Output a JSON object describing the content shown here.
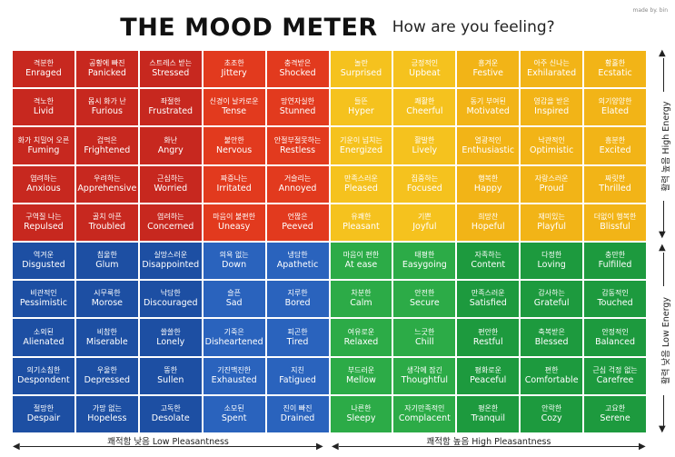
{
  "header": {
    "title": "THE MOOD METER",
    "subtitle": "How are you feeling?",
    "credit": "made by. bin"
  },
  "axes": {
    "low_pleasantness": "쾌적함 낮음  Low Pleasantness",
    "high_pleasantness": "쾌적함 높음  High Pleasantness",
    "high_energy": "활력 높음 High Energy",
    "low_energy": "활력 낮음  Low Energy"
  },
  "colors": {
    "red": "#c7281f",
    "red_light": "#e23a1e",
    "yellow": "#f2b417",
    "yellow_light": "#f5c21e",
    "blue": "#1d4fa3",
    "blue_light": "#2a63bd",
    "green": "#1d9a3e",
    "green_light": "#2cab47"
  },
  "grid": [
    [
      {
        "ko": "격분한",
        "en": "Enraged"
      },
      {
        "ko": "공황에 빠진",
        "en": "Panicked"
      },
      {
        "ko": "스트레스 받는",
        "en": "Stressed"
      },
      {
        "ko": "초조한",
        "en": "Jittery"
      },
      {
        "ko": "충격받은",
        "en": "Shocked"
      },
      {
        "ko": "놀란",
        "en": "Surprised"
      },
      {
        "ko": "긍정적인",
        "en": "Upbeat"
      },
      {
        "ko": "흥겨운",
        "en": "Festive"
      },
      {
        "ko": "아주 신나는",
        "en": "Exhilarated"
      },
      {
        "ko": "황홀한",
        "en": "Ecstatic"
      }
    ],
    [
      {
        "ko": "격노한",
        "en": "Livid"
      },
      {
        "ko": "몹시 화가 난",
        "en": "Furious"
      },
      {
        "ko": "좌절한",
        "en": "Frustrated"
      },
      {
        "ko": "신경이 날카로운",
        "en": "Tense"
      },
      {
        "ko": "망연자실한",
        "en": "Stunned"
      },
      {
        "ko": "들뜬",
        "en": "Hyper"
      },
      {
        "ko": "쾌활한",
        "en": "Cheerful"
      },
      {
        "ko": "동기 부여된",
        "en": "Motivated"
      },
      {
        "ko": "영감을 받은",
        "en": "Inspired"
      },
      {
        "ko": "의기양양한",
        "en": "Elated"
      }
    ],
    [
      {
        "ko": "화가 치밀어 오른",
        "en": "Fuming"
      },
      {
        "ko": "겁먹은",
        "en": "Frightened"
      },
      {
        "ko": "화난",
        "en": "Angry"
      },
      {
        "ko": "불안한",
        "en": "Nervous"
      },
      {
        "ko": "안절부절못하는",
        "en": "Restless"
      },
      {
        "ko": "기운이 넘치는",
        "en": "Energized"
      },
      {
        "ko": "활발한",
        "en": "Lively"
      },
      {
        "ko": "열광적인",
        "en": "Enthusiastic"
      },
      {
        "ko": "낙관적인",
        "en": "Optimistic"
      },
      {
        "ko": "흥분한",
        "en": "Excited"
      }
    ],
    [
      {
        "ko": "염려하는",
        "en": "Anxious"
      },
      {
        "ko": "우려하는",
        "en": "Apprehensive"
      },
      {
        "ko": "근심하는",
        "en": "Worried"
      },
      {
        "ko": "짜증나는",
        "en": "Irritated"
      },
      {
        "ko": "거슬리는",
        "en": "Annoyed"
      },
      {
        "ko": "만족스러운",
        "en": "Pleased"
      },
      {
        "ko": "집중하는",
        "en": "Focused"
      },
      {
        "ko": "행복한",
        "en": "Happy"
      },
      {
        "ko": "자랑스러운",
        "en": "Proud"
      },
      {
        "ko": "짜릿한",
        "en": "Thrilled"
      }
    ],
    [
      {
        "ko": "구역질 나는",
        "en": "Repulsed"
      },
      {
        "ko": "골치 아픈",
        "en": "Troubled"
      },
      {
        "ko": "염려하는",
        "en": "Concerned"
      },
      {
        "ko": "마음이 불편한",
        "en": "Uneasy"
      },
      {
        "ko": "언짢은",
        "en": "Peeved"
      },
      {
        "ko": "유쾌한",
        "en": "Pleasant"
      },
      {
        "ko": "기쁜",
        "en": "Joyful"
      },
      {
        "ko": "희망찬",
        "en": "Hopeful"
      },
      {
        "ko": "재미있는",
        "en": "Playful"
      },
      {
        "ko": "더없이 행복한",
        "en": "Blissful"
      }
    ],
    [
      {
        "ko": "역겨운",
        "en": "Disgusted"
      },
      {
        "ko": "침울한",
        "en": "Glum"
      },
      {
        "ko": "실망스러운",
        "en": "Disappointed"
      },
      {
        "ko": "의욕 없는",
        "en": "Down"
      },
      {
        "ko": "냉담한",
        "en": "Apathetic"
      },
      {
        "ko": "마음이 편한",
        "en": "At ease"
      },
      {
        "ko": "태평한",
        "en": "Easygoing"
      },
      {
        "ko": "자족하는",
        "en": "Content"
      },
      {
        "ko": "다정한",
        "en": "Loving"
      },
      {
        "ko": "충만한",
        "en": "Fulfilled"
      }
    ],
    [
      {
        "ko": "비관적인",
        "en": "Pessimistic"
      },
      {
        "ko": "시무룩한",
        "en": "Morose"
      },
      {
        "ko": "낙담한",
        "en": "Discouraged"
      },
      {
        "ko": "슬픈",
        "en": "Sad"
      },
      {
        "ko": "지루한",
        "en": "Bored"
      },
      {
        "ko": "차분한",
        "en": "Calm"
      },
      {
        "ko": "안전한",
        "en": "Secure"
      },
      {
        "ko": "만족스러운",
        "en": "Satisfied"
      },
      {
        "ko": "감사하는",
        "en": "Grateful"
      },
      {
        "ko": "감동적인",
        "en": "Touched"
      }
    ],
    [
      {
        "ko": "소외된",
        "en": "Alienated"
      },
      {
        "ko": "비참한",
        "en": "Miserable"
      },
      {
        "ko": "쓸쓸한",
        "en": "Lonely"
      },
      {
        "ko": "기죽은",
        "en": "Disheartened"
      },
      {
        "ko": "피곤한",
        "en": "Tired"
      },
      {
        "ko": "여유로운",
        "en": "Relaxed"
      },
      {
        "ko": "느긋한",
        "en": "Chill"
      },
      {
        "ko": "편안한",
        "en": "Restful"
      },
      {
        "ko": "축복받은",
        "en": "Blessed"
      },
      {
        "ko": "안정적인",
        "en": "Balanced"
      }
    ],
    [
      {
        "ko": "의기소침한",
        "en": "Despondent"
      },
      {
        "ko": "우울한",
        "en": "Depressed"
      },
      {
        "ko": "뚱한",
        "en": "Sullen"
      },
      {
        "ko": "기진맥진한",
        "en": "Exhausted"
      },
      {
        "ko": "지친",
        "en": "Fatigued"
      },
      {
        "ko": "부드러운",
        "en": "Mellow"
      },
      {
        "ko": "생각에 잠긴",
        "en": "Thoughtful"
      },
      {
        "ko": "평화로운",
        "en": "Peaceful"
      },
      {
        "ko": "편한",
        "en": "Comfortable"
      },
      {
        "ko": "근심 걱정 없는",
        "en": "Carefree"
      }
    ],
    [
      {
        "ko": "절망한",
        "en": "Despair"
      },
      {
        "ko": "가망 없는",
        "en": "Hopeless"
      },
      {
        "ko": "고독한",
        "en": "Desolate"
      },
      {
        "ko": "소모된",
        "en": "Spent"
      },
      {
        "ko": "진이 빠진",
        "en": "Drained"
      },
      {
        "ko": "나른한",
        "en": "Sleepy"
      },
      {
        "ko": "자기만족적인",
        "en": "Complacent"
      },
      {
        "ko": "평온한",
        "en": "Tranquil"
      },
      {
        "ko": "안락한",
        "en": "Cozy"
      },
      {
        "ko": "고요한",
        "en": "Serene"
      }
    ]
  ]
}
